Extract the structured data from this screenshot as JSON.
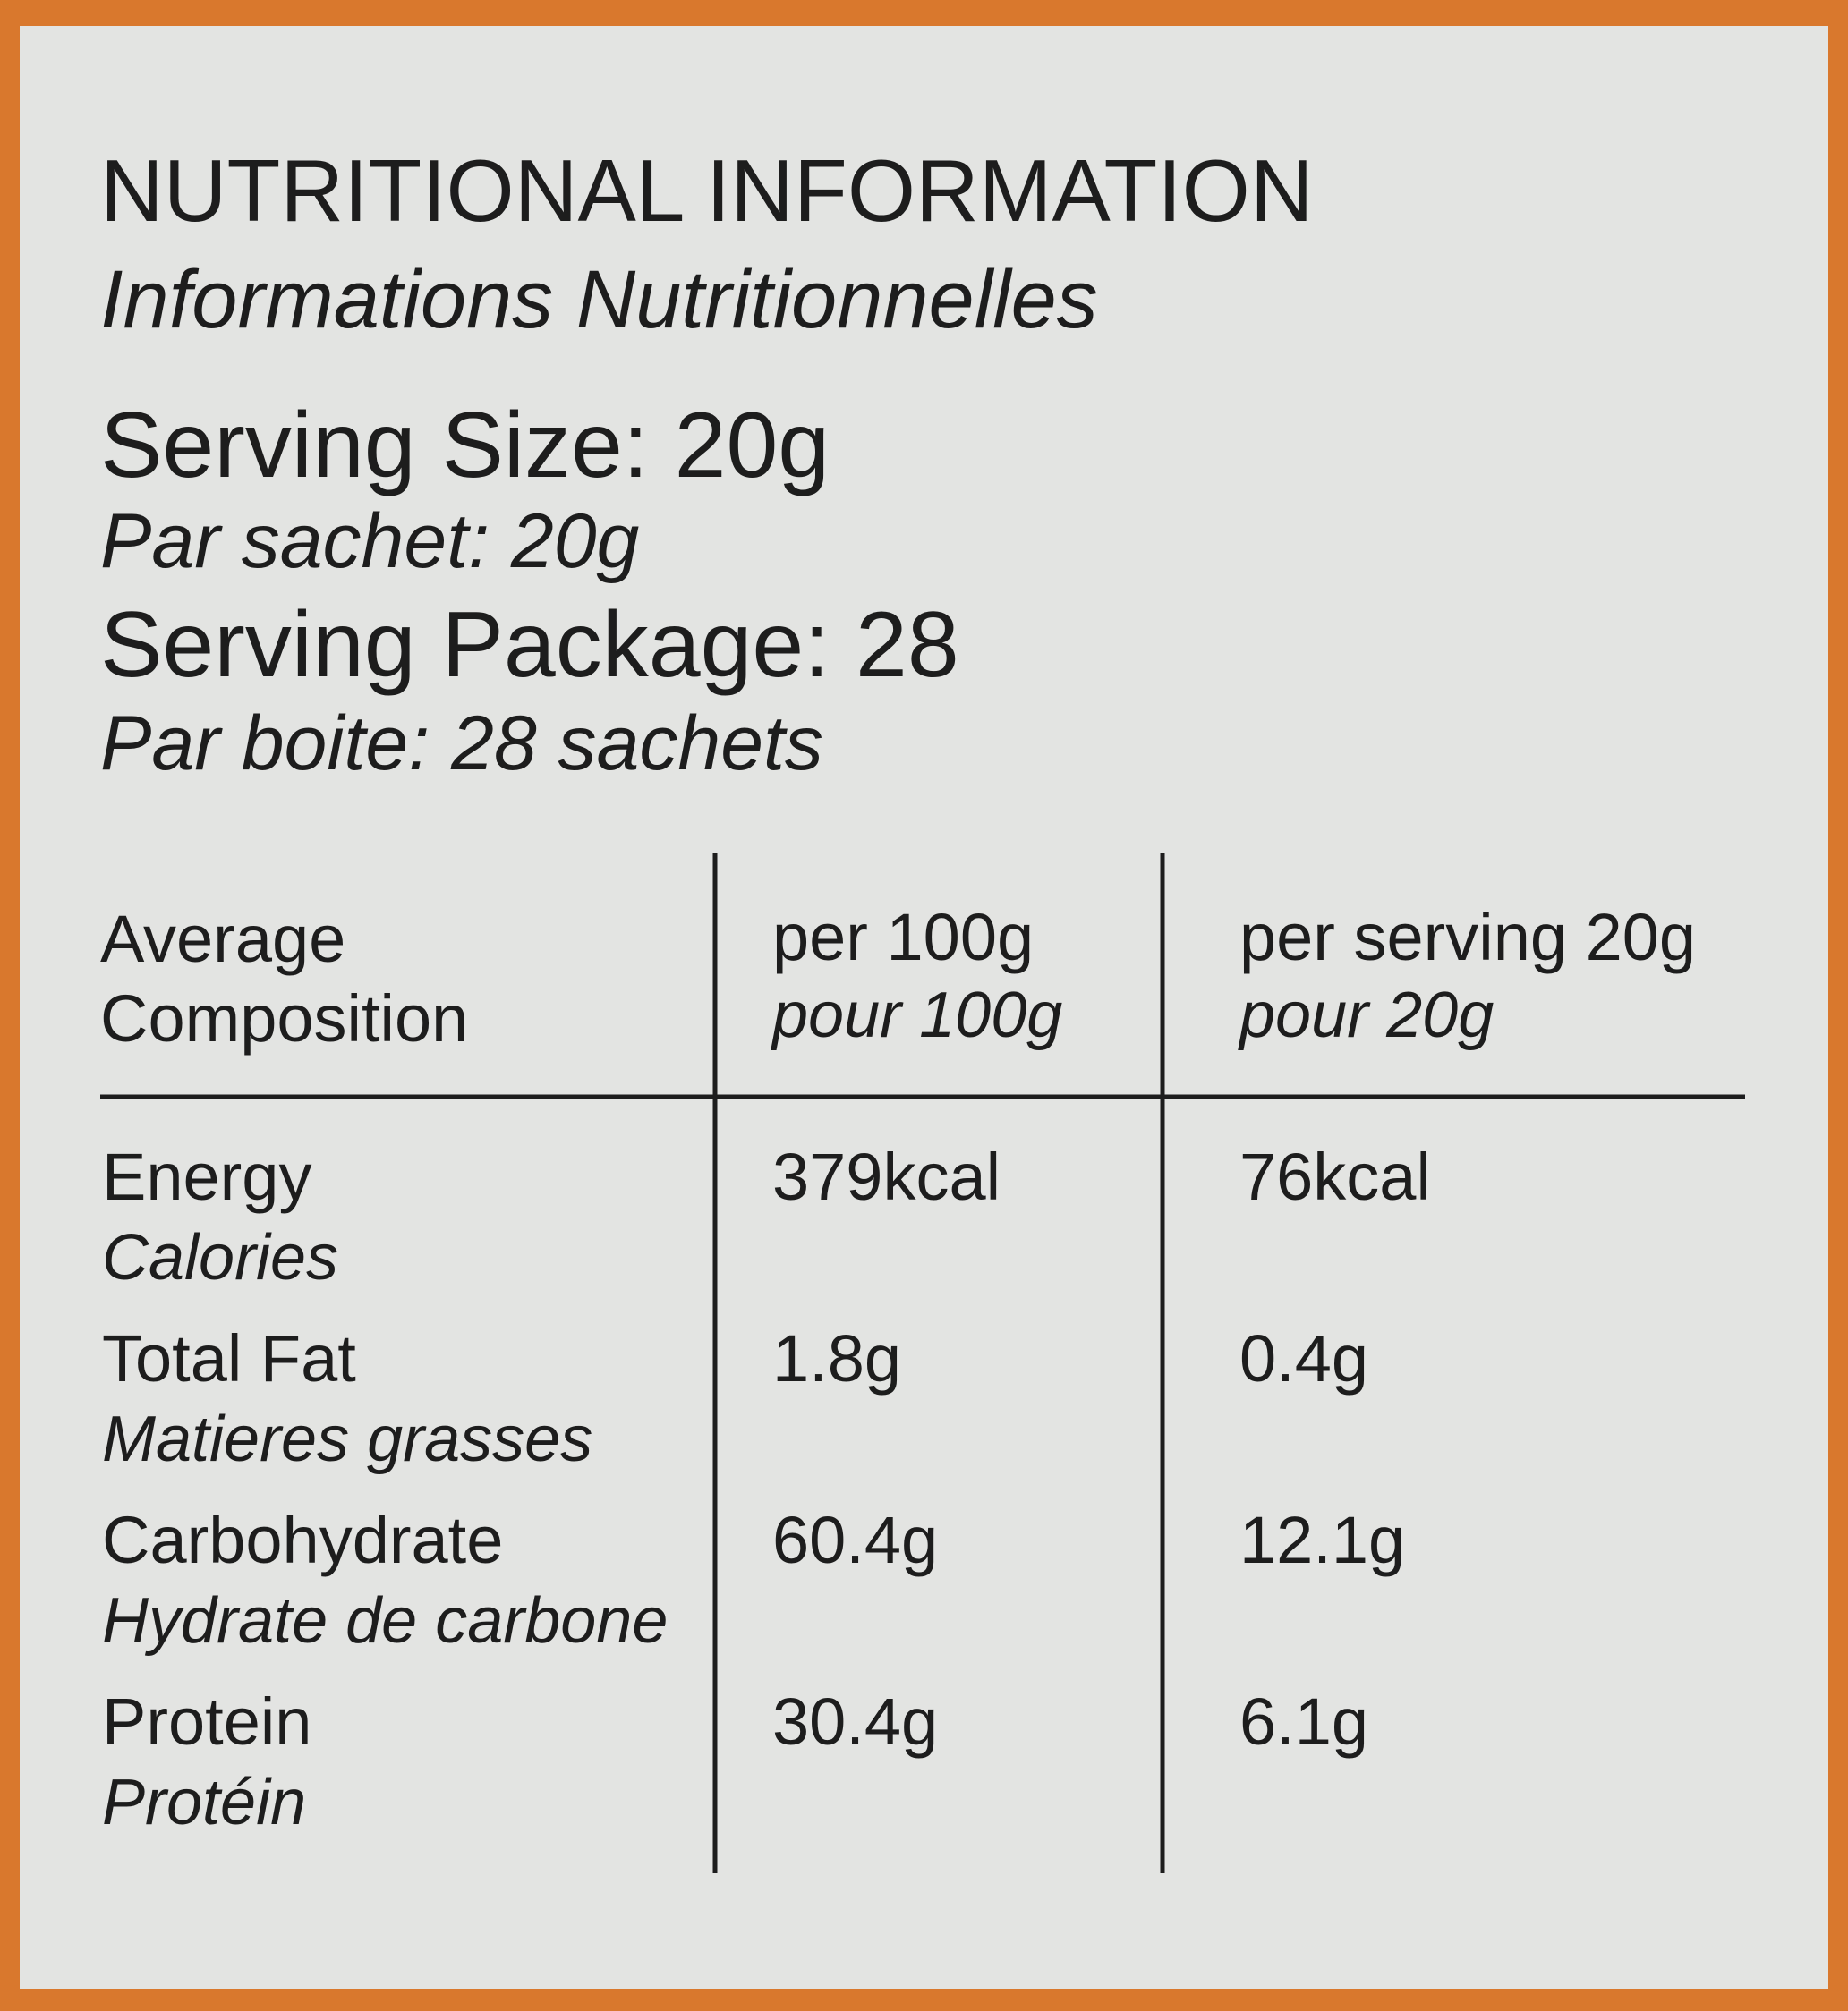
{
  "header": {
    "title": "NUTRITIONAL INFORMATION",
    "subtitle": "Informations Nutritionnelles"
  },
  "serving": [
    {
      "label": "Serving Size: 20g",
      "translation": "Par sachet: 20g"
    },
    {
      "label": "Serving Package: 28",
      "translation": "Par boite: 28 sachets"
    }
  ],
  "table": {
    "columns": [
      {
        "label": [
          "Average",
          "Composition"
        ],
        "translation": null
      },
      {
        "label": [
          "per 100g"
        ],
        "translation": "pour 100g"
      },
      {
        "label": [
          "per serving 20g"
        ],
        "translation": "pour 20g"
      }
    ],
    "rows": [
      {
        "name": "Energy",
        "translation": "Calories",
        "per100": "379kcal",
        "perServing": "76kcal"
      },
      {
        "name": "Total Fat",
        "translation": "Matieres grasses",
        "per100": "1.8g",
        "perServing": "0.4g"
      },
      {
        "name": "Carbohydrate",
        "translation": "Hydrate de carbone",
        "per100": "60.4g",
        "perServing": "12.1g"
      },
      {
        "name": "Protein",
        "translation": "Protéin",
        "per100": "30.4g",
        "perServing": "6.1g"
      }
    ]
  }
}
